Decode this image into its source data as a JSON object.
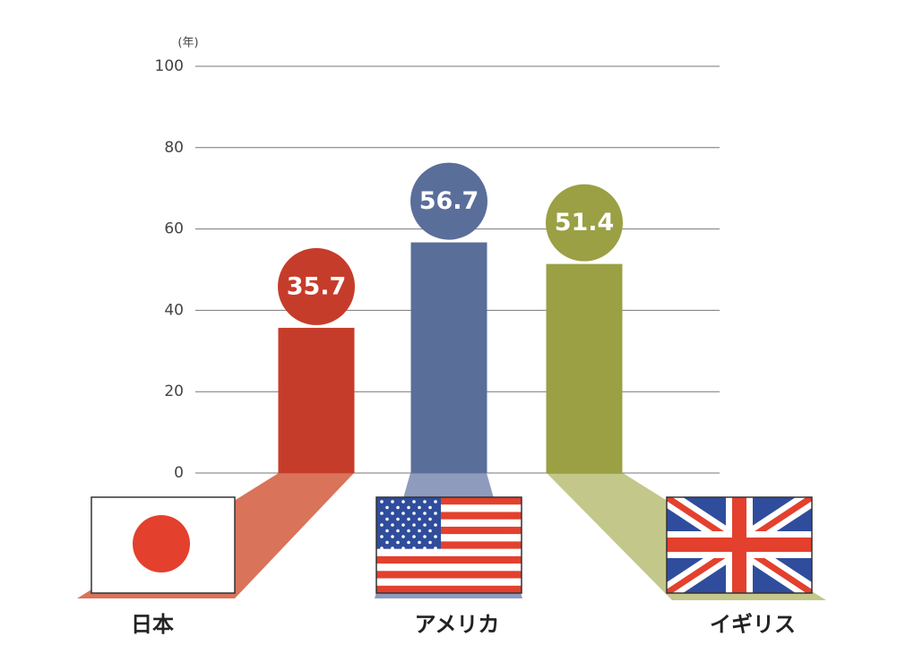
{
  "chart_data": {
    "type": "bar",
    "unit_label": "(年)",
    "categories": [
      "日本",
      "アメリカ",
      "イギリス"
    ],
    "values": [
      35.7,
      56.7,
      51.4
    ],
    "colors": [
      "#c63c2a",
      "#5a6e9a",
      "#9aa043"
    ],
    "ylim": [
      0,
      100
    ],
    "yticks": [
      0,
      20,
      40,
      60,
      80,
      100
    ],
    "grid": true
  }
}
